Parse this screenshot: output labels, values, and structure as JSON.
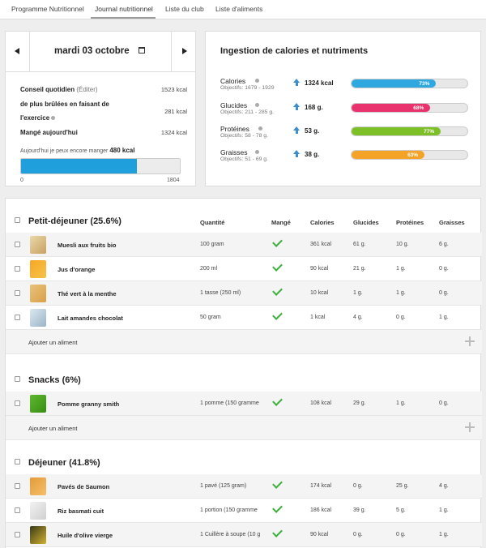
{
  "nav": {
    "tabs": [
      {
        "label": "Programme Nutritionnel"
      },
      {
        "label": "Journal nutritionnel"
      },
      {
        "label": "Liste du club"
      },
      {
        "label": "Liste d'aliments"
      }
    ]
  },
  "day": {
    "date": "mardi 03 octobre",
    "daily_advice_label": "Conseil quotidien",
    "edit_label": "(Éditer)",
    "daily_advice_value": "1523 kcal",
    "burned_label_1": "de plus brûlées en faisant de",
    "burned_label_2": "l'exercice",
    "burned_value": "281 kcal",
    "eaten_label": "Mangé aujourd'hui",
    "eaten_value": "1324 kcal",
    "remaining_text": "Aujourd'hui je peux encore manger",
    "remaining_value": "480 kcal",
    "progress_fraction": 0.73,
    "bar_min": "0",
    "bar_max": "1804"
  },
  "nutrients": {
    "title": "Ingestion de calories et nutriments",
    "items": [
      {
        "name": "Calories",
        "objective": "Objectifs: 1679 - 1929",
        "value": "1324 kcal",
        "pct": "73%",
        "fraction": 0.73,
        "color": "#2fa8e0"
      },
      {
        "name": "Glucides",
        "objective": "Objectifs: 211 - 285 g.",
        "value": "168 g.",
        "pct": "68%",
        "fraction": 0.68,
        "color": "#e8336e"
      },
      {
        "name": "Protéines",
        "objective": "Objectifs: 58 - 78 g.",
        "value": "53 g.",
        "pct": "77%",
        "fraction": 0.77,
        "color": "#7cbf26"
      },
      {
        "name": "Graisses",
        "objective": "Objectifs: 51 - 69 g.",
        "value": "38 g.",
        "pct": "63%",
        "fraction": 0.63,
        "color": "#f5a326"
      }
    ]
  },
  "columns": {
    "quantity": "Quantité",
    "eaten": "Mangé",
    "calories": "Calories",
    "carbs": "Glucides",
    "protein": "Protéines",
    "fat": "Graisses"
  },
  "add_food_label": "Ajouter un aliment",
  "meals": [
    {
      "title": "Petit-déjeuner (25.6%)",
      "foods": [
        {
          "name": "Muesli aux fruits bio",
          "qty": "100 gram",
          "cal": "361 kcal",
          "carbs": "61 g.",
          "prot": "10 g.",
          "fat": "6 g."
        },
        {
          "name": "Jus d'orange",
          "qty": "200 ml",
          "cal": "90 kcal",
          "carbs": "21 g.",
          "prot": "1 g.",
          "fat": "0 g."
        },
        {
          "name": "Thé vert à la menthe",
          "qty": "1 tasse (250 ml)",
          "cal": "10 kcal",
          "carbs": "1 g.",
          "prot": "1 g.",
          "fat": "0 g."
        },
        {
          "name": "Lait amandes chocolat",
          "qty": "50 gram",
          "cal": "1 kcal",
          "carbs": "4 g.",
          "prot": "0 g.",
          "fat": "1 g."
        }
      ]
    },
    {
      "title": "Snacks (6%)",
      "foods": [
        {
          "name": "Pomme granny smith",
          "qty": "1 pomme (150 gramme",
          "cal": "108 kcal",
          "carbs": "29 g.",
          "prot": "1 g.",
          "fat": "0 g."
        }
      ]
    },
    {
      "title": "Déjeuner (41.8%)",
      "foods": [
        {
          "name": "Pavés de Saumon",
          "qty": "1 pavé (125 gram)",
          "cal": "174 kcal",
          "carbs": "0 g.",
          "prot": "25 g.",
          "fat": "4 g."
        },
        {
          "name": "Riz basmati cuit",
          "qty": "1 portion (150 gramme",
          "cal": "186 kcal",
          "carbs": "39 g.",
          "prot": "5 g.",
          "fat": "1 g."
        },
        {
          "name": "Huile d'olive vierge",
          "qty": "1 Cuillère à soupe (10 g",
          "cal": "90 kcal",
          "carbs": "0 g.",
          "prot": "0 g.",
          "fat": "1 g."
        }
      ]
    }
  ]
}
